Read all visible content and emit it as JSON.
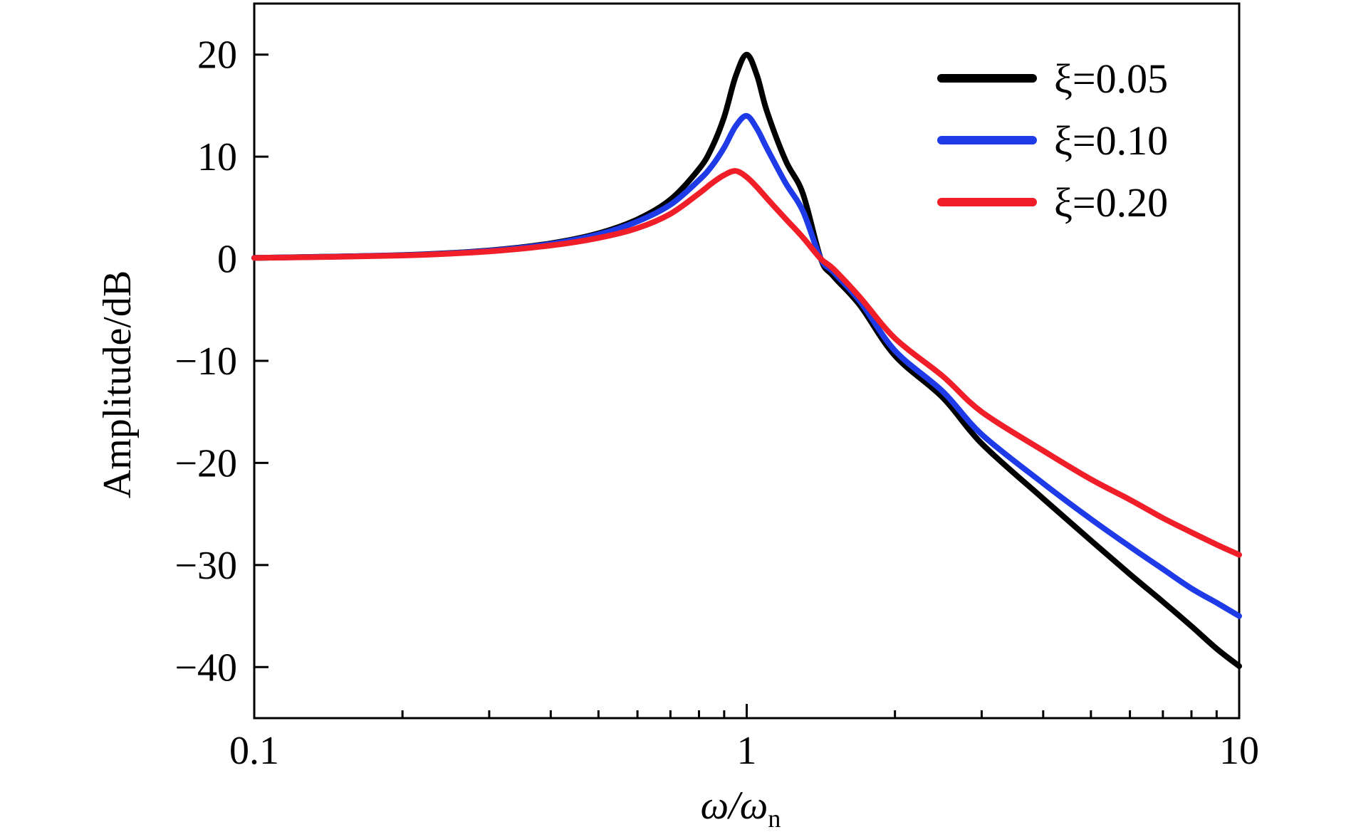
{
  "chart_data": {
    "type": "line",
    "title": "",
    "xlabel": "ω/ω_n",
    "xlabel_main": "ω/ω",
    "xlabel_sub": "n",
    "ylabel": "Amplitude/dB",
    "xscale": "log",
    "xlim": [
      0.1,
      10
    ],
    "ylim": [
      -45,
      25
    ],
    "xticks": [
      0.1,
      1,
      10
    ],
    "xtick_labels": [
      "0.1",
      "1",
      "10"
    ],
    "yticks": [
      20,
      10,
      0,
      -10,
      -20,
      -30,
      -40
    ],
    "ytick_labels": [
      "20",
      "10",
      "0",
      "−10",
      "−20",
      "−30",
      "−40"
    ],
    "grid": false,
    "legend_position": "top-right",
    "series": [
      {
        "name": "ξ=0.05",
        "color": "#000000",
        "x": [
          0.1,
          0.2,
          0.3,
          0.4,
          0.5,
          0.6,
          0.7,
          0.8,
          0.85,
          0.9,
          0.95,
          1.0,
          1.05,
          1.1,
          1.2,
          1.3,
          1.414,
          1.5,
          1.7,
          2,
          2.5,
          3,
          4,
          5,
          6,
          7,
          8,
          9,
          10
        ],
        "y": [
          0.09,
          0.36,
          0.82,
          1.51,
          2.49,
          3.86,
          5.8,
          8.8,
          10.9,
          13.9,
          17.9,
          20.0,
          17.9,
          14.4,
          9.6,
          6.4,
          0.0,
          -1.7,
          -4.6,
          -9.5,
          -13.6,
          -18.1,
          -23.5,
          -27.6,
          -30.9,
          -33.6,
          -36.0,
          -38.2,
          -39.9
        ]
      },
      {
        "name": "ξ=0.10",
        "color": "#1f3be8",
        "x": [
          0.1,
          0.2,
          0.3,
          0.4,
          0.5,
          0.6,
          0.7,
          0.8,
          0.85,
          0.9,
          0.95,
          1.0,
          1.05,
          1.1,
          1.2,
          1.3,
          1.414,
          1.5,
          1.7,
          2,
          2.5,
          3,
          4,
          5,
          6,
          7,
          8,
          9,
          10
        ],
        "y": [
          0.08,
          0.35,
          0.79,
          1.45,
          2.38,
          3.65,
          5.3,
          7.7,
          9.1,
          10.9,
          13.0,
          14.0,
          12.7,
          10.8,
          7.4,
          4.7,
          0.0,
          -1.3,
          -4.2,
          -9.0,
          -13.0,
          -17.2,
          -22.0,
          -25.5,
          -28.2,
          -30.4,
          -32.3,
          -33.7,
          -35.0
        ]
      },
      {
        "name": "ξ=0.20",
        "color": "#f01e28",
        "x": [
          0.1,
          0.2,
          0.3,
          0.4,
          0.5,
          0.6,
          0.7,
          0.8,
          0.85,
          0.9,
          0.95,
          1.0,
          1.05,
          1.1,
          1.2,
          1.3,
          1.414,
          1.5,
          1.7,
          2,
          2.5,
          3,
          4,
          5,
          6,
          7,
          8,
          9,
          10
        ],
        "y": [
          0.08,
          0.32,
          0.72,
          1.3,
          2.04,
          3.0,
          4.4,
          6.4,
          7.4,
          8.2,
          8.6,
          8.0,
          7.0,
          5.9,
          3.9,
          2.1,
          0.0,
          -1.0,
          -3.8,
          -7.8,
          -11.5,
          -15.0,
          -18.8,
          -21.6,
          -23.6,
          -25.4,
          -26.8,
          -28.0,
          -29.0
        ]
      }
    ]
  }
}
